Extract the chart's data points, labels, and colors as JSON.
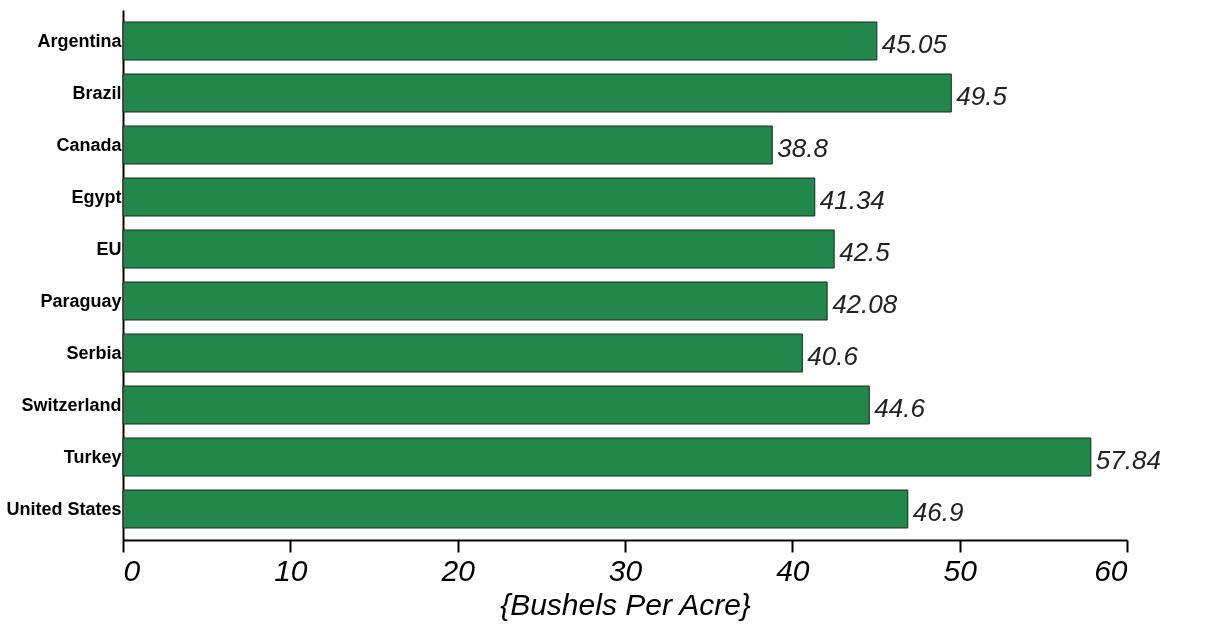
{
  "chart_data": {
    "type": "bar",
    "orientation": "horizontal",
    "xlabel": "{Bushels Per Acre}",
    "categories": [
      "Argentina",
      "Brazil",
      "Canada",
      "Egypt",
      "EU",
      "Paraguay",
      "Serbia",
      "Switzerland",
      "Turkey",
      "United States"
    ],
    "values": [
      45.05,
      49.5,
      38.8,
      41.34,
      42.5,
      42.08,
      40.6,
      44.6,
      57.84,
      46.9
    ],
    "color": "#22874a",
    "xlim": [
      0,
      60
    ],
    "xticks": [
      0,
      10,
      20,
      30,
      40,
      50,
      60
    ],
    "grid": false,
    "data_labels": true
  }
}
